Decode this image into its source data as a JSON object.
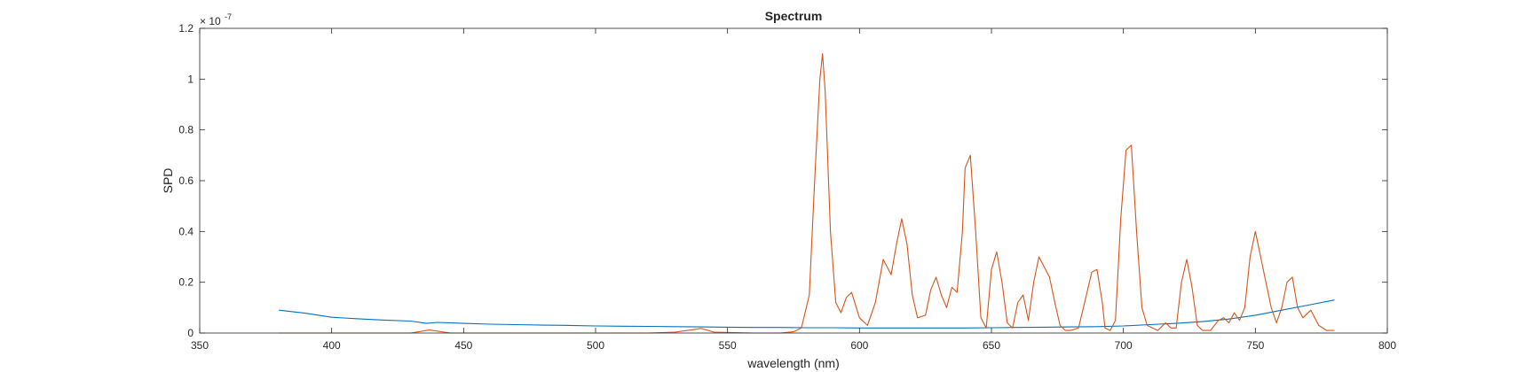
{
  "figure": {
    "background": "#ffffff"
  },
  "chart_data": {
    "type": "line",
    "title": "Spectrum",
    "xlabel": "wavelength (nm)",
    "ylabel": "SPD",
    "y_exponent_label": "× 10",
    "y_exponent_power": "-7",
    "xlim": [
      350,
      800
    ],
    "ylim": [
      0,
      1.2
    ],
    "grid": false,
    "legend": "none",
    "x_ticks": [
      350,
      400,
      450,
      500,
      550,
      600,
      650,
      700,
      750,
      800
    ],
    "y_ticks": [
      0,
      0.2,
      0.4,
      0.6,
      0.8,
      1,
      1.2
    ],
    "x_tick_labels": [
      "350",
      "400",
      "450",
      "500",
      "550",
      "600",
      "650",
      "700",
      "750",
      "800"
    ],
    "y_tick_labels": [
      "0",
      "0.2",
      "0.4",
      "0.6",
      "0.8",
      "1",
      "1.2"
    ],
    "series": [
      {
        "color": "#0072BD",
        "x": [
          380,
          390,
          400,
          410,
          420,
          430,
          436,
          440,
          450,
          460,
          470,
          480,
          490,
          500,
          510,
          520,
          530,
          540,
          550,
          560,
          570,
          580,
          590,
          600,
          610,
          620,
          630,
          640,
          650,
          660,
          670,
          680,
          690,
          700,
          710,
          720,
          730,
          740,
          750,
          760,
          770,
          780
        ],
        "y": [
          0.09,
          0.078,
          0.062,
          0.056,
          0.051,
          0.047,
          0.038,
          0.042,
          0.038,
          0.035,
          0.033,
          0.031,
          0.03,
          0.028,
          0.027,
          0.026,
          0.025,
          0.024,
          0.023,
          0.022,
          0.022,
          0.021,
          0.021,
          0.02,
          0.02,
          0.02,
          0.02,
          0.02,
          0.021,
          0.022,
          0.023,
          0.024,
          0.025,
          0.028,
          0.033,
          0.038,
          0.045,
          0.055,
          0.07,
          0.09,
          0.11,
          0.13
        ]
      },
      {
        "color": "#D95319",
        "x": [
          380,
          430,
          437,
          445,
          520,
          530,
          540,
          545,
          560,
          570,
          575,
          578,
          581,
          583,
          585,
          586,
          587,
          589,
          591,
          593,
          595,
          597,
          600,
          603,
          606,
          609,
          612,
          614,
          616,
          618,
          620,
          622,
          625,
          627,
          629,
          631,
          633,
          635,
          637,
          639,
          640,
          642,
          644,
          646,
          648,
          650,
          652,
          654,
          656,
          658,
          660,
          662,
          664,
          666,
          668,
          670,
          672,
          674,
          676,
          678,
          680,
          683,
          686,
          688,
          690,
          692,
          693,
          695,
          697,
          699,
          701,
          703,
          705,
          707,
          709,
          711,
          713,
          716,
          718,
          720,
          722,
          724,
          726,
          728,
          730,
          733,
          736,
          738,
          740,
          742,
          744,
          746,
          748,
          750,
          752,
          754,
          756,
          758,
          760,
          762,
          764,
          766,
          768,
          771,
          774,
          777,
          780
        ],
        "y": [
          0,
          0,
          0.012,
          0,
          0,
          0.003,
          0.018,
          0.003,
          0,
          0,
          0.005,
          0.02,
          0.15,
          0.6,
          1.0,
          1.1,
          0.95,
          0.4,
          0.12,
          0.08,
          0.14,
          0.16,
          0.06,
          0.03,
          0.12,
          0.29,
          0.23,
          0.35,
          0.45,
          0.35,
          0.15,
          0.06,
          0.07,
          0.17,
          0.22,
          0.15,
          0.1,
          0.18,
          0.16,
          0.4,
          0.65,
          0.7,
          0.4,
          0.06,
          0.02,
          0.25,
          0.32,
          0.2,
          0.04,
          0.02,
          0.12,
          0.15,
          0.05,
          0.2,
          0.3,
          0.26,
          0.22,
          0.12,
          0.03,
          0.01,
          0.01,
          0.02,
          0.15,
          0.24,
          0.25,
          0.12,
          0.02,
          0.01,
          0.05,
          0.45,
          0.72,
          0.74,
          0.4,
          0.1,
          0.03,
          0.02,
          0.01,
          0.04,
          0.02,
          0.02,
          0.2,
          0.29,
          0.18,
          0.03,
          0.01,
          0.01,
          0.05,
          0.06,
          0.04,
          0.08,
          0.05,
          0.1,
          0.3,
          0.4,
          0.3,
          0.2,
          0.1,
          0.04,
          0.1,
          0.2,
          0.22,
          0.1,
          0.06,
          0.09,
          0.03,
          0.01,
          0.01
        ]
      }
    ]
  }
}
